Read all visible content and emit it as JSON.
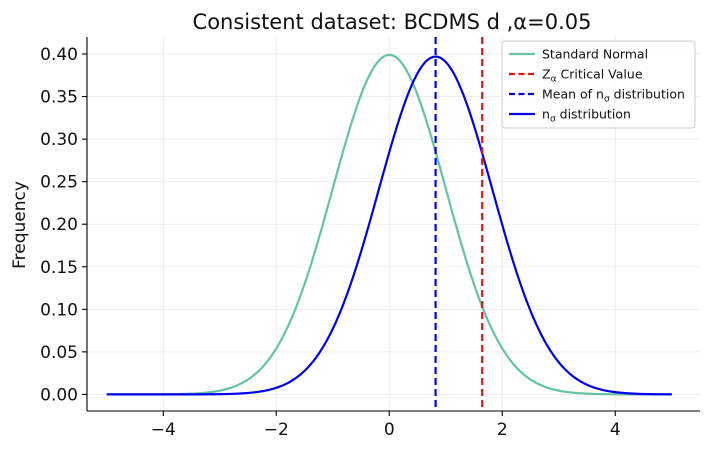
{
  "chart_data": {
    "type": "line",
    "title": "Consistent dataset: BCDMS d ,α=0.05",
    "xlabel": "",
    "ylabel": "Frequency",
    "xlim": [
      -5.35,
      5.5
    ],
    "ylim": [
      -0.0195,
      0.42
    ],
    "xticks": [
      -4,
      -2,
      0,
      2,
      4
    ],
    "xtick_labels": [
      "−4",
      "−2",
      "0",
      "2",
      "4"
    ],
    "yticks": [
      0.0,
      0.05,
      0.1,
      0.15,
      0.2,
      0.25,
      0.3,
      0.35,
      0.4
    ],
    "ytick_labels": [
      "0.00",
      "0.05",
      "0.10",
      "0.15",
      "0.20",
      "0.25",
      "0.30",
      "0.35",
      "0.40"
    ],
    "grid": true,
    "legend_position": "top-right",
    "series": [
      {
        "name": "Standard Normal",
        "kind": "normal_pdf",
        "mean": 0.0,
        "std": 1.0,
        "x_range": [
          -5,
          5
        ],
        "color": "#66c2a5",
        "style": "solid"
      },
      {
        "name": "n_σ distribution",
        "kind": "normal_pdf",
        "mean": 0.82,
        "std": 1.005,
        "x_range": [
          -5,
          5
        ],
        "color": "#0000ee",
        "style": "solid"
      }
    ],
    "vlines": [
      {
        "name": "Z_α Critical Value",
        "x": 1.645,
        "color": "#ee1111",
        "style": "dashed"
      },
      {
        "name": "Mean of n_σ distribution",
        "x": 0.82,
        "color": "#0000ee",
        "style": "dashed"
      }
    ],
    "legend": [
      {
        "main": "Standard Normal",
        "sub": "",
        "tail": "",
        "color": "#66c2a5",
        "style": "solid"
      },
      {
        "main": "Z",
        "sub": "α",
        "tail": " Critical Value",
        "color": "#ee1111",
        "style": "dashed"
      },
      {
        "main": "Mean of n",
        "sub": "σ",
        "tail": " distribution",
        "color": "#0000ee",
        "style": "dashed"
      },
      {
        "main": "n",
        "sub": "σ",
        "tail": " distribution",
        "color": "#0000ee",
        "style": "solid"
      }
    ]
  }
}
